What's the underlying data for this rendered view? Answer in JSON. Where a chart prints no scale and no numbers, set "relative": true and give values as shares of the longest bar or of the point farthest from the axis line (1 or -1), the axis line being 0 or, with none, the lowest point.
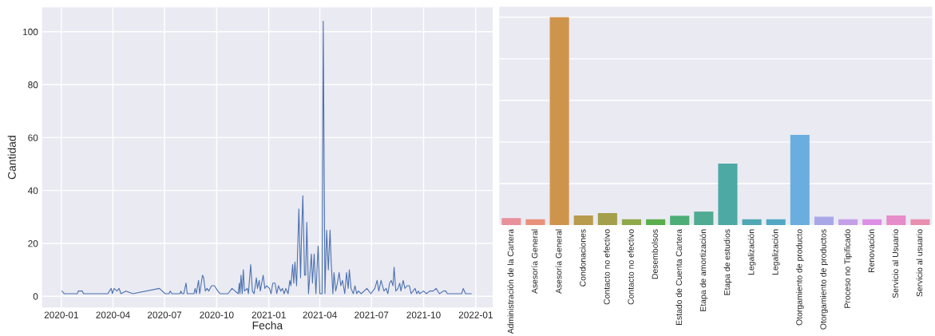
{
  "chart_data": [
    {
      "type": "line",
      "xlabel": "Fecha",
      "ylabel": "Cantidad",
      "grid": true,
      "legend": false,
      "marker": "none",
      "line_style": "solid",
      "xlim": [
        "2019-11-28",
        "2022-01-31"
      ],
      "ylim": [
        -4.2,
        109.2
      ],
      "xticks": [
        "2020-01",
        "2020-04",
        "2020-07",
        "2020-10",
        "2021-01",
        "2021-04",
        "2021-07",
        "2021-10",
        "2022-01"
      ],
      "yticks": [
        0,
        20,
        40,
        60,
        80,
        100
      ],
      "series": [
        {
          "color": "#4c72b0",
          "x": [
            "2020-01-02",
            "2020-01-06",
            "2020-01-29",
            "2020-01-31",
            "2020-02-07",
            "2020-02-09",
            "2020-03-23",
            "2020-03-26",
            "2020-03-29",
            "2020-03-31",
            "2020-04-03",
            "2020-04-08",
            "2020-04-12",
            "2020-04-15",
            "2020-04-24",
            "2020-05-06",
            "2020-06-22",
            "2020-07-02",
            "2020-07-09",
            "2020-07-11",
            "2020-07-14",
            "2020-07-28",
            "2020-07-30",
            "2020-08-01",
            "2020-08-04",
            "2020-08-08",
            "2020-08-10",
            "2020-08-22",
            "2020-08-24",
            "2020-08-26",
            "2020-08-30",
            "2020-09-01",
            "2020-09-06",
            "2020-09-08",
            "2020-09-11",
            "2020-09-14",
            "2020-09-17",
            "2020-09-22",
            "2020-09-27",
            "2020-10-03",
            "2020-10-07",
            "2020-10-21",
            "2020-10-28",
            "2020-11-08",
            "2020-11-10",
            "2020-11-11",
            "2020-11-13",
            "2020-11-15",
            "2020-11-17",
            "2020-11-19",
            "2020-11-24",
            "2020-11-26",
            "2020-11-30",
            "2020-12-03",
            "2020-12-06",
            "2020-12-10",
            "2020-12-12",
            "2020-12-15",
            "2020-12-17",
            "2020-12-22",
            "2020-12-25",
            "2020-12-28",
            "2021-01-02",
            "2021-01-05",
            "2021-01-08",
            "2021-01-12",
            "2021-01-15",
            "2021-01-18",
            "2021-01-22",
            "2021-01-25",
            "2021-01-28",
            "2021-01-31",
            "2021-02-04",
            "2021-02-07",
            "2021-02-09",
            "2021-02-12",
            "2021-02-14",
            "2021-02-16",
            "2021-02-19",
            "2021-02-23",
            "2021-02-26",
            "2021-02-28",
            "2021-03-02",
            "2021-03-05",
            "2021-03-07",
            "2021-03-09",
            "2021-03-12",
            "2021-03-17",
            "2021-03-19",
            "2021-03-22",
            "2021-03-25",
            "2021-03-29",
            "2021-04-01",
            "2021-04-05",
            "2021-04-07",
            "2021-04-10",
            "2021-04-13",
            "2021-04-16",
            "2021-04-19",
            "2021-04-21",
            "2021-04-24",
            "2021-04-26",
            "2021-04-29",
            "2021-05-02",
            "2021-05-05",
            "2021-05-08",
            "2021-05-11",
            "2021-05-15",
            "2021-05-18",
            "2021-05-21",
            "2021-05-23",
            "2021-05-26",
            "2021-05-30",
            "2021-06-02",
            "2021-06-05",
            "2021-06-08",
            "2021-06-13",
            "2021-06-23",
            "2021-06-30",
            "2021-07-07",
            "2021-07-11",
            "2021-07-14",
            "2021-07-18",
            "2021-07-23",
            "2021-07-27",
            "2021-07-30",
            "2021-08-02",
            "2021-08-05",
            "2021-08-08",
            "2021-08-10",
            "2021-08-13",
            "2021-08-17",
            "2021-08-20",
            "2021-08-22",
            "2021-08-26",
            "2021-08-29",
            "2021-09-02",
            "2021-09-06",
            "2021-09-09",
            "2021-09-16",
            "2021-09-19",
            "2021-09-22",
            "2021-09-24",
            "2021-10-01",
            "2021-10-06",
            "2021-10-12",
            "2021-10-18",
            "2021-10-23",
            "2021-10-29",
            "2021-11-05",
            "2021-11-09",
            "2021-11-12",
            "2021-12-07",
            "2021-12-10",
            "2021-12-14",
            "2021-12-24"
          ],
          "values": [
            2,
            1,
            1,
            2,
            2,
            1,
            1,
            2,
            3,
            1,
            3,
            2,
            3,
            1,
            2,
            1,
            3,
            1,
            1,
            2,
            1,
            1,
            2,
            1,
            1,
            5,
            1,
            1,
            3,
            1,
            6,
            1,
            8,
            7,
            2,
            3,
            2,
            4,
            4,
            2,
            1,
            1,
            3,
            1,
            5,
            1,
            8,
            1,
            10,
            2,
            3,
            1,
            12,
            2,
            1,
            7,
            3,
            6,
            2,
            8,
            3,
            4,
            3,
            1,
            5,
            5,
            1,
            4,
            2,
            3,
            1,
            3,
            1,
            6,
            4,
            12,
            5,
            13,
            4,
            33,
            7,
            25,
            38,
            8,
            8,
            28,
            1,
            16,
            5,
            16,
            1,
            19,
            1,
            1,
            104,
            1,
            25,
            10,
            25,
            13,
            1,
            9,
            2,
            5,
            9,
            4,
            6,
            1,
            9,
            3,
            10,
            3,
            1,
            4,
            1,
            2,
            1,
            3,
            1,
            3,
            6,
            2,
            6,
            2,
            3,
            1,
            5,
            6,
            4,
            11,
            2,
            3,
            5,
            2,
            6,
            3,
            4,
            4,
            1,
            3,
            1,
            2,
            1,
            2,
            1,
            2,
            2,
            3,
            1,
            2,
            2,
            1,
            1,
            3,
            1,
            1
          ]
        }
      ]
    },
    {
      "type": "bar",
      "relative": true,
      "grid": "y",
      "legend": false,
      "categories": [
        "Administración de la Cartera",
        "Asesoría General",
        "Asesoría General",
        "Condonaciones",
        "Contacto no efectivo",
        "Contacto no efectivo",
        "Desembolsos",
        "Estado de Cuenta Cartera",
        "Etapa de amortización",
        "Etapa de estudios",
        "Legalización",
        "Legalización",
        "Otorgamiento de producto",
        "Otorgamiento de productos",
        "Proceso no Tipificado",
        "Renovación",
        "Servicio al Usuario",
        "Servicio al usuario"
      ],
      "values": [
        0.034,
        0.028,
        1,
        0.046,
        0.058,
        0.028,
        0.028,
        0.045,
        0.065,
        0.296,
        0.028,
        0.028,
        0.434,
        0.041,
        0.028,
        0.028,
        0.046,
        0.028
      ],
      "colors": [
        "#e8919b",
        "#e9917a",
        "#cf944c",
        "#b99b4d",
        "#a39f4b",
        "#8ea84a",
        "#5aae4e",
        "#4dad77",
        "#4fab92",
        "#4da9a4",
        "#4fa8b3",
        "#52a7c4",
        "#6aaee0",
        "#a8a8e9",
        "#c5a0e8",
        "#dd8fe6",
        "#e68cc8",
        "#e88fb0"
      ]
    }
  ]
}
